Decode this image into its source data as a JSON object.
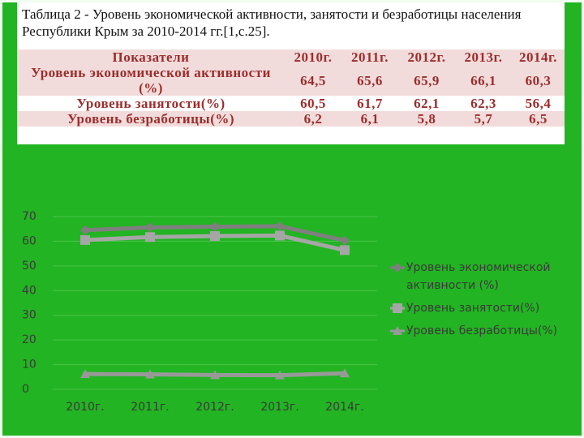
{
  "table": {
    "title": "Таблица 2 - Уровень экономической активности, занятости и безработицы населения Республики Крым за 2010-2014 гг.[1,с.25].",
    "header": [
      "Показатели",
      "2010г.",
      "2011г.",
      "2012г.",
      "2013г.",
      "2014г."
    ],
    "rows": [
      [
        "Уровень экономической активности (%)",
        "64,5",
        "65,6",
        "65,9",
        "66,1",
        "60,3"
      ],
      [
        "Уровень занятости(%)",
        "60,5",
        "61,7",
        "62,1",
        "62,3",
        "56,4"
      ],
      [
        "Уровень безработицы(%)",
        "6,2",
        "6,1",
        "5,8",
        "5,7",
        "6,5"
      ]
    ]
  },
  "chart_data": {
    "type": "line",
    "categories": [
      "2010г.",
      "2011г.",
      "2012г.",
      "2013г.",
      "2014г."
    ],
    "series": [
      {
        "name": "Уровень экономической активности (%)",
        "color": "#7f7f7f",
        "marker": "diamond",
        "values": [
          64.5,
          65.6,
          65.9,
          66.1,
          60.3
        ]
      },
      {
        "name": "Уровень занятости(%)",
        "color": "#a6a6a6",
        "marker": "square",
        "values": [
          60.5,
          61.7,
          62.1,
          62.3,
          56.4
        ]
      },
      {
        "name": "Уровень безработицы(%)",
        "color": "#999999",
        "marker": "triangle",
        "values": [
          6.2,
          6.1,
          5.8,
          5.7,
          6.5
        ]
      }
    ],
    "ylim": [
      0,
      70
    ],
    "yticks": [
      0,
      10,
      20,
      30,
      40,
      50,
      60,
      70
    ],
    "grid": true,
    "legend": "right"
  }
}
